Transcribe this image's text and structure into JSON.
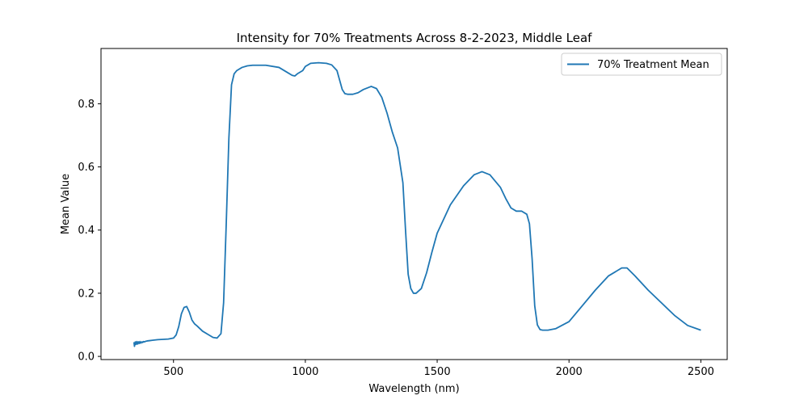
{
  "chart_data": {
    "type": "line",
    "title": "Intensity for 70% Treatments Across 8-2-2023, Middle Leaf",
    "xlabel": "Wavelength (nm)",
    "ylabel": "Mean Value",
    "xlim": [
      225,
      2600
    ],
    "ylim": [
      -0.01,
      0.975
    ],
    "xticks": [
      500,
      1000,
      1500,
      2000,
      2500
    ],
    "yticks": [
      0.0,
      0.2,
      0.4,
      0.6,
      0.8
    ],
    "xtick_labels": [
      "500",
      "1000",
      "1500",
      "2000",
      "2500"
    ],
    "ytick_labels": [
      "0.0",
      "0.2",
      "0.4",
      "0.6",
      "0.8"
    ],
    "grid": false,
    "legend_position": "upper right",
    "series": [
      {
        "name": "70% Treatment Mean",
        "color": "#1f77b4",
        "x": [
          350,
          352,
          355,
          358,
          361,
          364,
          367,
          370,
          373,
          376,
          380,
          383,
          386,
          390,
          395,
          400,
          410,
          420,
          440,
          460,
          480,
          500,
          510,
          520,
          530,
          540,
          550,
          560,
          570,
          580,
          590,
          610,
          630,
          650,
          665,
          680,
          690,
          700,
          710,
          720,
          730,
          740,
          750,
          760,
          780,
          800,
          850,
          900,
          930,
          950,
          960,
          970,
          990,
          1000,
          1020,
          1050,
          1080,
          1100,
          1120,
          1130,
          1140,
          1150,
          1160,
          1180,
          1200,
          1220,
          1250,
          1270,
          1290,
          1310,
          1330,
          1350,
          1370,
          1380,
          1390,
          1400,
          1410,
          1420,
          1440,
          1460,
          1480,
          1500,
          1550,
          1600,
          1640,
          1670,
          1700,
          1740,
          1760,
          1780,
          1800,
          1820,
          1840,
          1850,
          1860,
          1870,
          1880,
          1890,
          1900,
          1920,
          1950,
          2000,
          2050,
          2100,
          2150,
          2200,
          2220,
          2250,
          2300,
          2350,
          2400,
          2450,
          2500
        ],
        "y": [
          0.045,
          0.032,
          0.046,
          0.038,
          0.047,
          0.039,
          0.046,
          0.041,
          0.047,
          0.042,
          0.046,
          0.044,
          0.047,
          0.046,
          0.048,
          0.049,
          0.05,
          0.051,
          0.053,
          0.054,
          0.055,
          0.058,
          0.068,
          0.095,
          0.135,
          0.155,
          0.158,
          0.14,
          0.115,
          0.103,
          0.096,
          0.08,
          0.07,
          0.06,
          0.058,
          0.072,
          0.17,
          0.42,
          0.69,
          0.86,
          0.895,
          0.905,
          0.91,
          0.915,
          0.92,
          0.922,
          0.922,
          0.915,
          0.9,
          0.89,
          0.888,
          0.895,
          0.905,
          0.918,
          0.928,
          0.93,
          0.928,
          0.923,
          0.905,
          0.875,
          0.845,
          0.832,
          0.83,
          0.83,
          0.835,
          0.845,
          0.855,
          0.848,
          0.82,
          0.77,
          0.71,
          0.66,
          0.55,
          0.4,
          0.26,
          0.215,
          0.2,
          0.2,
          0.215,
          0.265,
          0.33,
          0.39,
          0.48,
          0.54,
          0.575,
          0.585,
          0.575,
          0.535,
          0.5,
          0.47,
          0.46,
          0.46,
          0.45,
          0.42,
          0.31,
          0.16,
          0.1,
          0.085,
          0.083,
          0.083,
          0.088,
          0.11,
          0.16,
          0.21,
          0.255,
          0.28,
          0.28,
          0.255,
          0.21,
          0.17,
          0.13,
          0.098,
          0.083
        ]
      }
    ]
  }
}
